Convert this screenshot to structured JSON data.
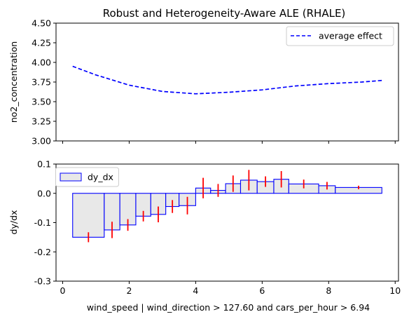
{
  "figure": {
    "title": "Robust and Heterogeneity-Aware ALE (RHALE)"
  },
  "chart_data": [
    {
      "type": "line",
      "title": "Robust and Heterogeneity-Aware ALE (RHALE)",
      "xlabel": "",
      "ylabel": "no2_concentration",
      "xlim": [
        -0.2,
        10.1
      ],
      "ylim": [
        3.0,
        4.5
      ],
      "x_ticks": [
        0,
        2,
        4,
        6,
        8,
        10
      ],
      "x_tick_labels_visible": false,
      "y_ticks": [
        3.0,
        3.25,
        3.5,
        3.75,
        4.0,
        4.25,
        4.5
      ],
      "y_tick_labels": [
        "3.00",
        "3.25",
        "3.50",
        "3.75",
        "4.00",
        "4.25",
        "4.50"
      ],
      "legend": {
        "position": "upper-right",
        "entries": [
          "average effect"
        ]
      },
      "series": [
        {
          "name": "average effect",
          "color": "#0000ff",
          "style": "dashed",
          "x": [
            0.3,
            1.0,
            2.0,
            3.0,
            4.0,
            5.0,
            6.0,
            7.0,
            8.0,
            9.0,
            9.6
          ],
          "y": [
            3.95,
            3.84,
            3.71,
            3.63,
            3.6,
            3.62,
            3.65,
            3.7,
            3.73,
            3.75,
            3.77
          ]
        }
      ]
    },
    {
      "type": "bar",
      "title": "",
      "xlabel": "wind_speed | wind_direction > 127.60 and cars_per_hour > 6.94",
      "ylabel": "dy/dx",
      "xlim": [
        -0.2,
        10.1
      ],
      "ylim": [
        -0.3,
        0.1
      ],
      "x_ticks": [
        0,
        2,
        4,
        6,
        8,
        10
      ],
      "x_tick_labels": [
        "0",
        "2",
        "4",
        "6",
        "8",
        "10"
      ],
      "y_ticks": [
        -0.3,
        -0.2,
        -0.1,
        0.0,
        0.1
      ],
      "y_tick_labels": [
        "-0.3",
        "-0.2",
        "-0.1",
        "0.0",
        "0.1"
      ],
      "legend": {
        "position": "upper-left",
        "entries": [
          "dy_dx"
        ]
      },
      "bar_fill": "#e8e8e8",
      "bar_edge": "#0000ff",
      "error_color": "#ff0000",
      "bins": [
        {
          "x0": 0.3,
          "x1": 1.25,
          "value": -0.15,
          "err": 0.017
        },
        {
          "x0": 1.25,
          "x1": 1.72,
          "value": -0.125,
          "err": 0.028
        },
        {
          "x0": 1.72,
          "x1": 2.2,
          "value": -0.108,
          "err": 0.02
        },
        {
          "x0": 2.2,
          "x1": 2.65,
          "value": -0.078,
          "err": 0.018
        },
        {
          "x0": 2.65,
          "x1": 3.1,
          "value": -0.072,
          "err": 0.027
        },
        {
          "x0": 3.1,
          "x1": 3.5,
          "value": -0.045,
          "err": 0.022
        },
        {
          "x0": 3.5,
          "x1": 4.0,
          "value": -0.042,
          "err": 0.03
        },
        {
          "x0": 4.0,
          "x1": 4.45,
          "value": 0.018,
          "err": 0.035
        },
        {
          "x0": 4.45,
          "x1": 4.9,
          "value": 0.01,
          "err": 0.022
        },
        {
          "x0": 4.9,
          "x1": 5.35,
          "value": 0.033,
          "err": 0.028
        },
        {
          "x0": 5.35,
          "x1": 5.85,
          "value": 0.045,
          "err": 0.035
        },
        {
          "x0": 5.85,
          "x1": 6.35,
          "value": 0.04,
          "err": 0.018
        },
        {
          "x0": 6.35,
          "x1": 6.8,
          "value": 0.048,
          "err": 0.028
        },
        {
          "x0": 6.8,
          "x1": 7.7,
          "value": 0.032,
          "err": 0.015
        },
        {
          "x0": 7.7,
          "x1": 8.2,
          "value": 0.026,
          "err": 0.013
        },
        {
          "x0": 8.2,
          "x1": 9.6,
          "value": 0.02,
          "err": 0.006
        }
      ]
    }
  ]
}
